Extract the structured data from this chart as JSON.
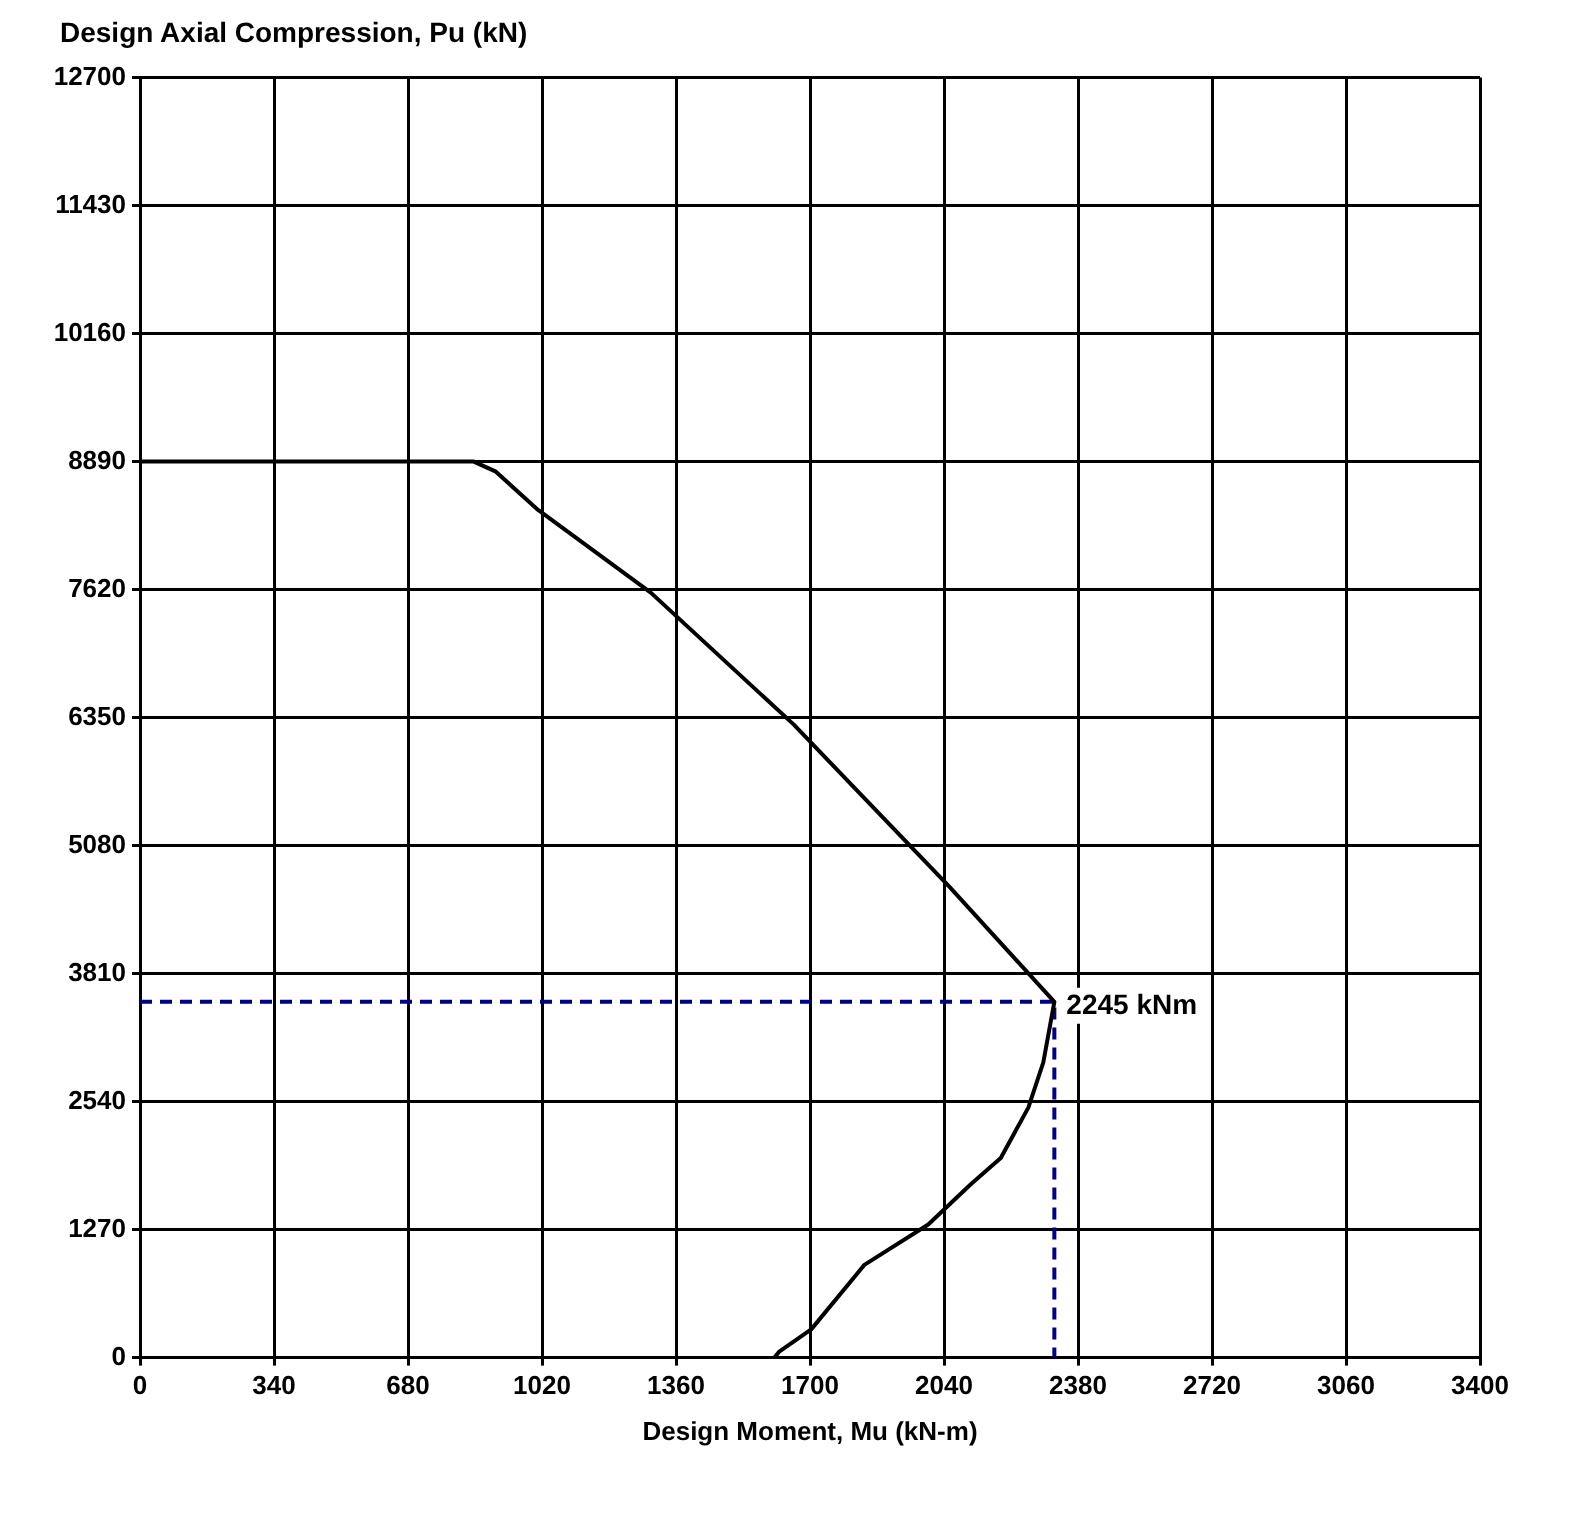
{
  "chart_data": {
    "type": "line",
    "xlabel": "Design Moment, Mu (kN-m)",
    "ylabel": "Design Axial Compression, Pu (kN)",
    "xlim": [
      0,
      3400
    ],
    "xticks": [
      0,
      340,
      680,
      1020,
      1360,
      1700,
      2040,
      2380,
      2720,
      3060,
      3400
    ],
    "ylim": [
      0,
      12700
    ],
    "yticks": [
      0,
      1270,
      2540,
      3810,
      5080,
      6350,
      7620,
      8890,
      10160,
      11430,
      12700
    ],
    "grid": true,
    "marker": "none",
    "series": [
      {
        "color": "#000000",
        "x": [
          0,
          847,
          903,
          1010,
          1296,
          1659,
          2054,
          2320,
          2292,
          2254,
          2184,
          2108,
          2000,
          1838,
          1703,
          1622,
          1610
        ],
        "values": [
          8890,
          8890,
          8790,
          8410,
          7590,
          6280,
          4670,
          3530,
          2930,
          2480,
          1980,
          1720,
          1320,
          920,
          280,
          60,
          0
        ]
      },
      {
        "color": "#00008b",
        "line_style": "dashed",
        "x": [
          0,
          2320,
          2320
        ],
        "values": [
          3530,
          3530,
          0
        ]
      }
    ],
    "annotations": [
      {
        "text": "2245 kNm",
        "x": 2320,
        "y": 3530
      }
    ]
  }
}
